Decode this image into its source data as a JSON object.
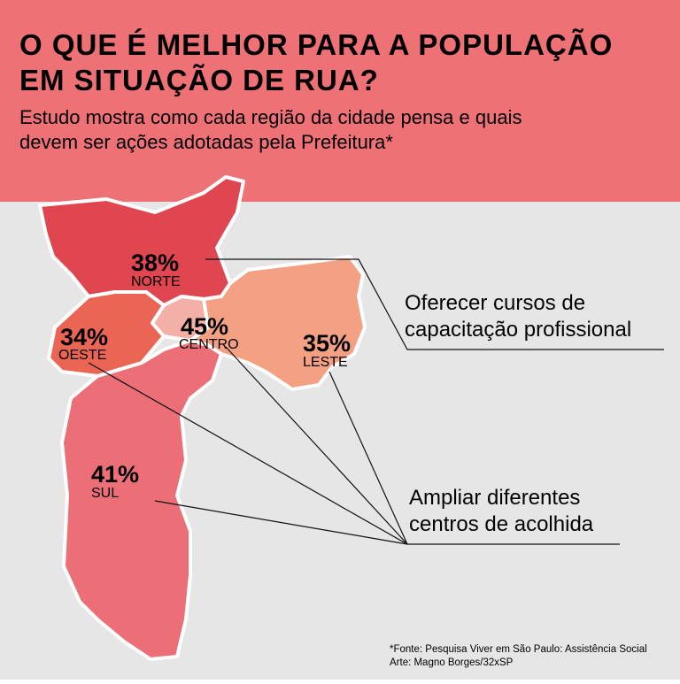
{
  "header": {
    "title_lines": [
      "O QUE É MELHOR PARA A POPULAÇÃO",
      "EM SITUAÇÃO DE RUA?"
    ],
    "subtitle_lines": [
      "Estudo mostra como cada região da cidade pensa e quais",
      "devem ser ações adotadas pela Prefeitura*"
    ]
  },
  "regions": [
    {
      "name": "NORTE",
      "label": "38%"
    },
    {
      "name": "OESTE",
      "label": "34%"
    },
    {
      "name": "CENTRO",
      "label": "45%"
    },
    {
      "name": "LESTE",
      "label": "35%"
    },
    {
      "name": "SUL",
      "label": "41%"
    }
  ],
  "callouts": [
    {
      "lines": [
        "Oferecer cursos de",
        "capacitação profissional"
      ]
    },
    {
      "lines": [
        "Ampliar diferentes",
        "centros de acolhida"
      ]
    }
  ],
  "footer": {
    "lines": [
      "*Fonte: Pesquisa Viver em São Paulo: Assistência Social",
      "Arte: Magno Borges/32xSP"
    ]
  }
}
